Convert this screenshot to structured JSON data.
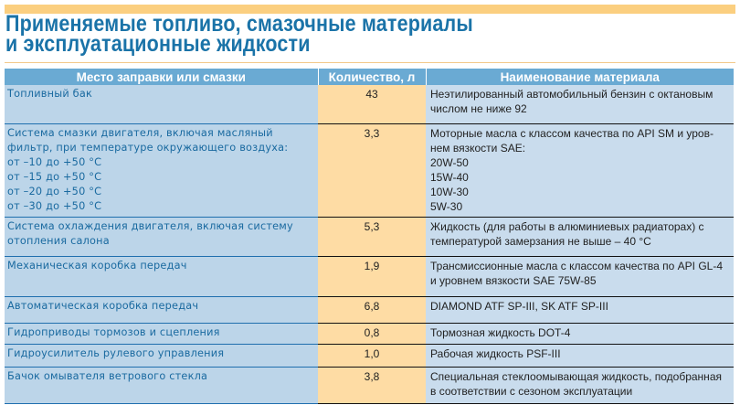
{
  "page": {
    "title_lines": [
      "Применяемые топливо, смазочные материалы",
      "и эксплуатационные жидкости"
    ],
    "colors": {
      "accent_bar": "#fbcf80",
      "title": "#1a73a8",
      "header_bg": "#6aaad3",
      "place_bg": "#bcd5e9",
      "qty_bg": "#fedca4",
      "material_bg": "#c9dced"
    }
  },
  "table": {
    "headers": [
      "Место заправки или смазки",
      "Количество, л",
      "Наименование материала"
    ],
    "rows": [
      {
        "place": [
          "Топливный бак"
        ],
        "qty": "43",
        "material": [
          "Неэтилированный автомобильный бензин с октановым",
          "числом не ниже 92"
        ]
      },
      {
        "place": [
          "Система смазки двигателя, включая масляный",
          "фильтр, при температуре окружающего воздуха:",
          "от –10 до +50 °С",
          "от –15 до +50 °С",
          "от –20 до +50 °С",
          "от –30 до +50 °С"
        ],
        "qty": "3,3",
        "material": [
          "Моторные масла с классом качества по API SM и уров-",
          "нем вязкости SAE:",
          "20W-50",
          "15W-40",
          "10W-30",
          "5W-30"
        ]
      },
      {
        "place": [
          "Система охлаждения двигателя, включая систему",
          "отопления салона"
        ],
        "qty": "5,3",
        "material": [
          "Жидкость  (для работы в алюминиевых радиаторах) с",
          "температурой замерзания не выше – 40 °С"
        ]
      },
      {
        "place": [
          "Механическая коробка передач"
        ],
        "qty": "1,9",
        "material": [
          "Трансмиссионные масла с классом качества по API GL-4",
          "и уровнем вязкости SAE 75W-85"
        ]
      },
      {
        "place": [
          "Автоматическая коробка передач"
        ],
        "qty": "6,8",
        "material": [
          "DIAMOND ATF SP-III, SK ATF SP-III"
        ]
      },
      {
        "place": [
          "Гидроприводы тормозов и сцепления"
        ],
        "qty": "0,8",
        "material": [
          "Тормозная жидкость DOT-4"
        ]
      },
      {
        "place": [
          "Гидроусилитель рулевого управления"
        ],
        "qty": "1,0",
        "material": [
          "Рабочая жидкость PSF-III"
        ]
      },
      {
        "place": [
          "Бачок омывателя ветрового стекла"
        ],
        "qty": "3,8",
        "material": [
          "Специальная стеклоомывающая жидкость, подобранная",
          "в соответствии с сезоном эксплуатации"
        ]
      }
    ]
  }
}
